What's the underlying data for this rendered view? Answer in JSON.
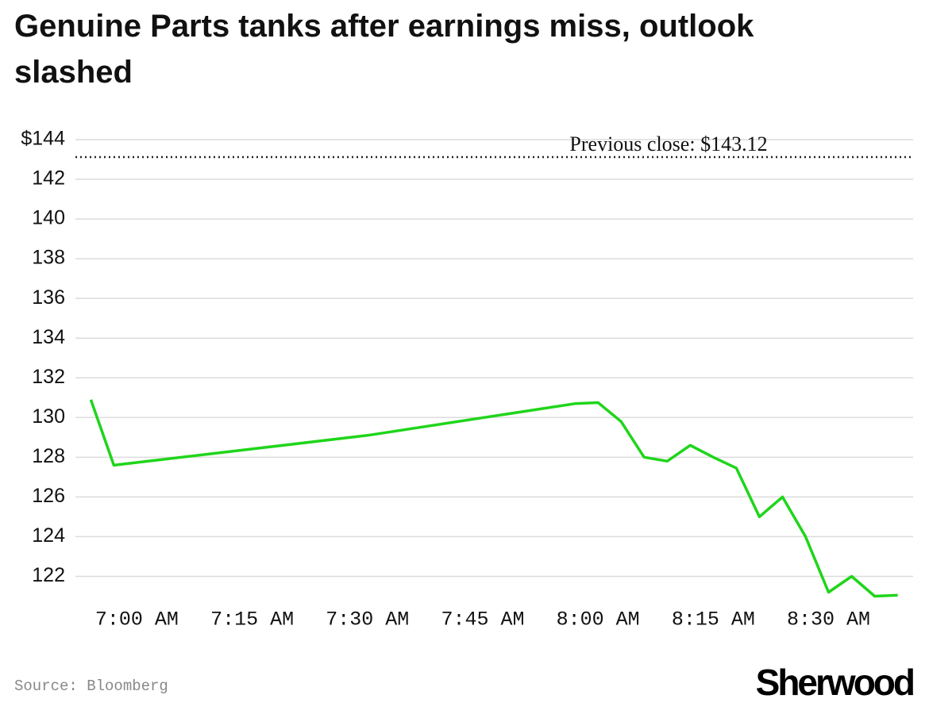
{
  "title": "Genuine Parts tanks after earnings miss, outlook slashed",
  "source": "Source: Bloomberg",
  "brand": "Sherwood",
  "chart_data": {
    "type": "line",
    "x": [
      "6:54 AM",
      "6:57 AM",
      "7:30 AM",
      "7:57 AM",
      "8:00 AM",
      "8:03 AM",
      "8:06 AM",
      "8:09 AM",
      "8:12 AM",
      "8:15 AM",
      "8:18 AM",
      "8:21 AM",
      "8:24 AM",
      "8:27 AM",
      "8:30 AM",
      "8:33 AM",
      "8:36 AM",
      "8:39 AM"
    ],
    "values": [
      130.9,
      127.6,
      129.1,
      130.7,
      130.75,
      129.8,
      128.0,
      127.8,
      128.6,
      128.0,
      127.45,
      125.0,
      126.0,
      124.0,
      121.2,
      122.0,
      121.0,
      121.05
    ],
    "color": "#1fd51a",
    "xlim": [
      "6:52 AM",
      "8:41 AM"
    ],
    "xticks": [
      "7:00 AM",
      "7:15 AM",
      "7:30 AM",
      "7:45 AM",
      "8:00 AM",
      "8:15 AM",
      "8:30 AM"
    ],
    "ylim": [
      120.7,
      144
    ],
    "yticks": [
      {
        "value": 144,
        "label": "$144"
      },
      142,
      140,
      138,
      136,
      134,
      132,
      130,
      128,
      126,
      124,
      122
    ],
    "grid": true,
    "reference_line": {
      "value": 143.12,
      "label": "Previous close: $143.12"
    }
  }
}
